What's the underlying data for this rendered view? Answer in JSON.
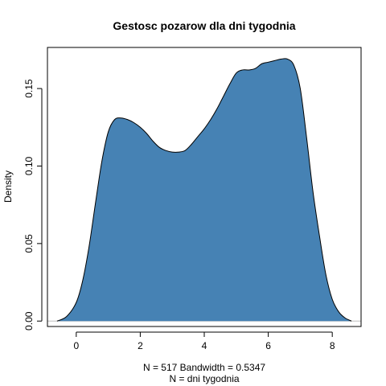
{
  "chart_data": {
    "type": "area",
    "title": "Gestosc pozarow dla dni tygodnia",
    "ylabel": "Density",
    "xlabel_lines": [
      "N = 517   Bandwidth = 0.5347",
      "N = dni tygodnia"
    ],
    "xlim": [
      -0.9,
      8.9
    ],
    "ylim": [
      -0.0035,
      0.1765
    ],
    "xticks": [
      0,
      2,
      4,
      6,
      8
    ],
    "xtick_labels": [
      "0",
      "2",
      "4",
      "6",
      "8"
    ],
    "yticks": [
      0.0,
      0.05,
      0.1,
      0.15
    ],
    "ytick_labels": [
      "0.00",
      "0.05",
      "0.10",
      "0.15"
    ],
    "grid": false,
    "fill_color": "#4682b4",
    "line_color": "#000000",
    "baseline_color": "#bebebe",
    "series": [
      {
        "x": [
          -0.6,
          -0.3,
          0,
          0.2,
          0.4,
          0.6,
          0.8,
          1.0,
          1.2,
          1.4,
          1.6,
          1.8,
          2.0,
          2.2,
          2.4,
          2.6,
          2.8,
          3.0,
          3.2,
          3.4,
          3.6,
          3.8,
          4.0,
          4.2,
          4.4,
          4.6,
          4.8,
          5.0,
          5.2,
          5.4,
          5.6,
          5.8,
          6.0,
          6.2,
          6.4,
          6.6,
          6.8,
          7.0,
          7.2,
          7.4,
          7.6,
          7.8,
          8.0,
          8.2,
          8.4,
          8.6
        ],
        "y": [
          0.0,
          0.003,
          0.012,
          0.026,
          0.048,
          0.076,
          0.103,
          0.122,
          0.13,
          0.131,
          0.13,
          0.128,
          0.125,
          0.121,
          0.116,
          0.112,
          0.11,
          0.109,
          0.109,
          0.11,
          0.114,
          0.119,
          0.124,
          0.13,
          0.137,
          0.145,
          0.153,
          0.16,
          0.162,
          0.162,
          0.163,
          0.166,
          0.167,
          0.168,
          0.169,
          0.169,
          0.165,
          0.15,
          0.118,
          0.083,
          0.055,
          0.03,
          0.014,
          0.006,
          0.002,
          0.0
        ]
      }
    ]
  }
}
